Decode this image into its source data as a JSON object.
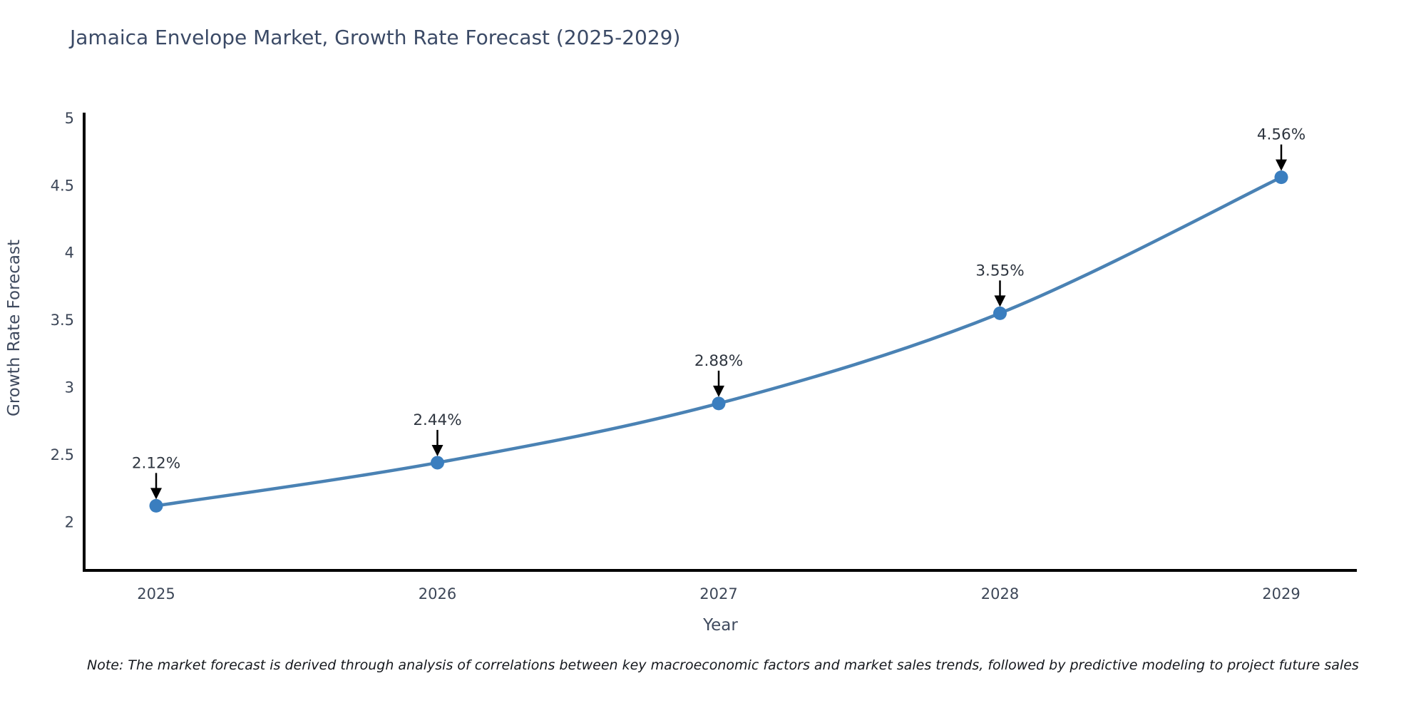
{
  "page": {
    "title": "Jamaica Envelope Market, Growth Rate Forecast (2025-2029)",
    "note": "Note: The market forecast is derived through analysis of correlations between key macroeconomic factors and market sales trends, followed by predictive modeling to project future sales"
  },
  "chart_data": {
    "type": "line",
    "title": "Jamaica Envelope Market, Growth Rate Forecast (2025-2029)",
    "xlabel": "Year",
    "ylabel": "Growth Rate Forecast",
    "categories": [
      "2025",
      "2026",
      "2027",
      "2028",
      "2029"
    ],
    "values": [
      2.12,
      2.44,
      2.88,
      3.55,
      4.56
    ],
    "point_labels": [
      "2.12%",
      "2.44%",
      "2.88%",
      "3.55%",
      "4.56%"
    ],
    "y_ticks": [
      2,
      2.5,
      3,
      3.5,
      4,
      4.5,
      5
    ],
    "ylim": [
      1.64,
      5.04
    ],
    "grid": false,
    "legend": "none",
    "line_style": "smooth-spline",
    "annotation_style": "value-label-with-down-arrow",
    "colors": {
      "line": "#4a82b4",
      "marker": "#3a7ebf",
      "axis": "#000000",
      "tick_label": "#3d4758",
      "axis_title": "#3f4a5e",
      "annotation_text": "#2f3640",
      "annotation_arrow": "#000000",
      "title": "#3b4a66",
      "background": "#ffffff"
    }
  }
}
